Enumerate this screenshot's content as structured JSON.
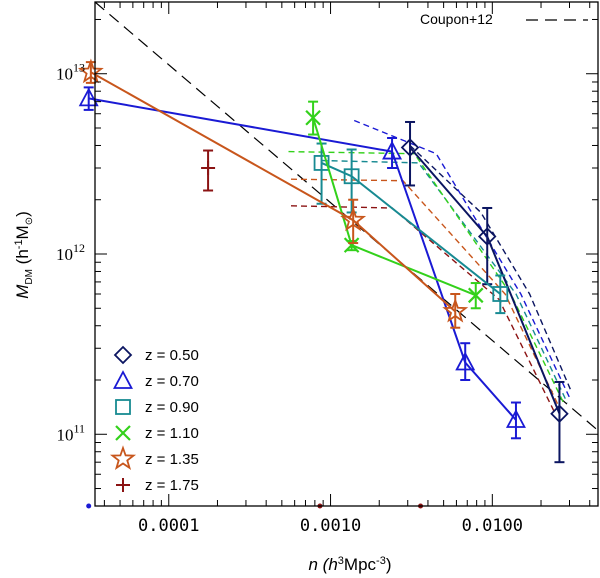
{
  "chart_data": {
    "type": "scatter",
    "xlabel": {
      "prefix": "n (h",
      "sup": "3",
      "unit": "Mpc",
      "sup2": "-3",
      "suffix": ")"
    },
    "ylabel": {
      "main": "M",
      "sub": "DM",
      "mid": " (h",
      "sup": "-1",
      "unit": "M",
      "sub2": "⊙",
      "suffix": ")"
    },
    "x_scale": "log",
    "y_scale": "log",
    "xlim": [
      3.5e-05,
      0.045
    ],
    "ylim": [
      40000000000,
      25000000000000
    ],
    "x_ticks": [
      {
        "value": 0.0001,
        "label": "0.0001"
      },
      {
        "value": 0.001,
        "label": "0.0010"
      },
      {
        "value": 0.01,
        "label": "0.0100"
      }
    ],
    "y_ticks": [
      {
        "value": 100000000000,
        "base": "10",
        "exp": "11"
      },
      {
        "value": 1000000000000,
        "base": "10",
        "exp": "12"
      },
      {
        "value": 10000000000000,
        "base": "10",
        "exp": "13"
      }
    ],
    "reference_line": {
      "label": "Coupon+12",
      "x": [
        3.5e-05,
        0.045
      ],
      "y": [
        25000000000000,
        105000000000
      ],
      "color": "#000000"
    },
    "series": [
      {
        "name": "z = 0.50",
        "marker": "diamond",
        "color": "#0b1561",
        "x": [
          0.0031,
          0.0093,
          0.026
        ],
        "y": [
          3900000000000,
          1250000000000,
          130000000000
        ],
        "err_low": [
          2400000000000,
          680000000000,
          70000000000
        ],
        "err_high": [
          5400000000000,
          1800000000000,
          195000000000
        ],
        "model_x": [
          0.0031,
          0.0085,
          0.017,
          0.031
        ],
        "model_y": [
          4000000000000,
          1700000000000,
          600000000000,
          170000000000
        ]
      },
      {
        "name": "z = 0.70",
        "marker": "triangle",
        "color": "#1a1ad4",
        "x": [
          3.2e-05,
          0.0024,
          0.0068,
          0.014
        ],
        "y": [
          7300000000000,
          3700000000000,
          250000000000,
          120000000000
        ],
        "err_low": [
          6300000000000,
          3000000000000,
          200000000000,
          95000000000
        ],
        "err_high": [
          8400000000000,
          4400000000000,
          320000000000,
          150000000000
        ],
        "model_x": [
          0.0014,
          0.0045,
          0.015,
          0.03
        ],
        "model_y": [
          5500000000000,
          3600000000000,
          600000000000,
          160000000000
        ]
      },
      {
        "name": "z = 0.90",
        "marker": "square",
        "color": "#178a92",
        "x": [
          0.00088,
          0.00135,
          0.0112
        ],
        "y": [
          3200000000000,
          2700000000000,
          600000000000
        ],
        "err_low": [
          1900000000000,
          1700000000000,
          470000000000
        ],
        "err_high": [
          4100000000000,
          3800000000000,
          760000000000
        ],
        "model_x": [
          0.00088,
          0.0035,
          0.014,
          0.029
        ],
        "model_y": [
          3300000000000,
          3200000000000,
          600000000000,
          150000000000
        ]
      },
      {
        "name": "z = 1.10",
        "marker": "x",
        "color": "#33d11b",
        "x": [
          0.00078,
          0.00135,
          0.0079
        ],
        "y": [
          5700000000000,
          1120000000000,
          590000000000
        ],
        "err_low": [
          4600000000000,
          1050000000000,
          500000000000
        ],
        "err_high": [
          7000000000000,
          1180000000000,
          690000000000
        ],
        "model_x": [
          0.00055,
          0.0033,
          0.013,
          0.028
        ],
        "model_y": [
          3700000000000,
          3600000000000,
          600000000000,
          145000000000
        ]
      },
      {
        "name": "z = 1.35",
        "marker": "star",
        "color": "#c8561c",
        "x": [
          3.3e-05,
          0.00138,
          0.0059
        ],
        "y": [
          10200000000000,
          1540000000000,
          480000000000
        ],
        "err_low": [
          8900000000000,
          1150000000000,
          390000000000
        ],
        "err_high": [
          11600000000000,
          2000000000000,
          600000000000
        ],
        "model_x": [
          0.00057,
          0.0028,
          0.012,
          0.026
        ],
        "model_y": [
          2600000000000,
          2550000000000,
          600000000000,
          140000000000
        ]
      },
      {
        "name": "z = 1.75",
        "marker": "plus",
        "color": "#8b1313",
        "x": [
          0.000175
        ],
        "y": [
          3000000000000
        ],
        "err_low": [
          2250000000000
        ],
        "err_high": [
          3750000000000
        ],
        "model_x": [
          0.00057,
          0.0024,
          0.011,
          0.024
        ],
        "model_y": [
          1850000000000,
          1800000000000,
          560000000000,
          135000000000
        ]
      }
    ],
    "bottom_markers": [
      {
        "x": 3.2e-05,
        "color": "#1a1ad4"
      },
      {
        "x": 0.00086,
        "color": "#8b1313"
      },
      {
        "x": 0.0036,
        "color": "#8b1313"
      }
    ],
    "legend_placement": "bottom-left",
    "grid": false
  }
}
